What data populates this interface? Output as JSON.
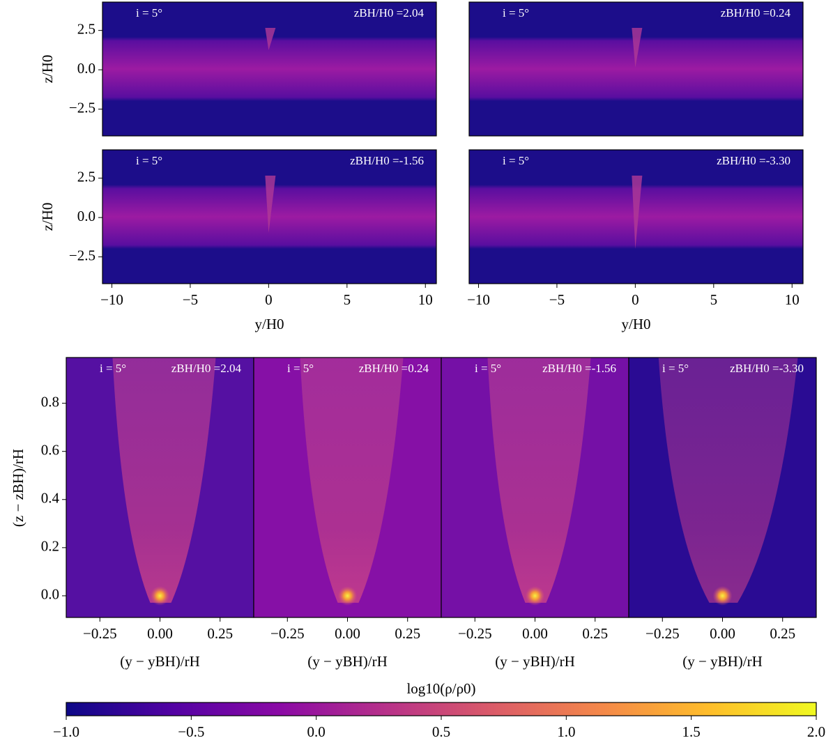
{
  "chart_data": [
    {
      "type": "image",
      "annotations": [
        "i = 5°",
        "zBH/H0 =2.04"
      ],
      "ylabel": "z/H0",
      "xlim": [
        -10.6,
        10.7
      ],
      "ylim": [
        -4.2,
        4.3
      ],
      "yticks": [
        2.5,
        {
          "value": 0,
          "label": "0.0"
        },
        {
          "value": -2.5,
          "label": "−2.5"
        }
      ]
    },
    {
      "type": "image",
      "annotations": [
        "i = 5°",
        "zBH/H0 =0.24"
      ],
      "xlim": [
        -10.6,
        10.7
      ],
      "ylim": [
        -4.2,
        4.3
      ]
    },
    {
      "type": "image",
      "annotations": [
        "i = 5°",
        "zBH/H0 =-1.56"
      ],
      "ylabel": "z/H0",
      "xlabel": "y/H0",
      "xlim": [
        -10.6,
        10.7
      ],
      "ylim": [
        -4.2,
        4.3
      ],
      "xticks": [
        {
          "value": -10,
          "label": "−10"
        },
        {
          "value": -5,
          "label": "−5"
        },
        0,
        5,
        10
      ],
      "yticks": [
        2.5,
        {
          "value": 0,
          "label": "0.0"
        },
        {
          "value": -2.5,
          "label": "−2.5"
        }
      ]
    },
    {
      "type": "image",
      "annotations": [
        "i = 5°",
        "zBH/H0 =-3.30"
      ],
      "xlabel": "y/H0",
      "xlim": [
        -10.6,
        10.7
      ],
      "ylim": [
        -4.2,
        4.3
      ],
      "xticks": [
        {
          "value": -10,
          "label": "−10"
        },
        {
          "value": -5,
          "label": "−5"
        },
        0,
        5,
        10
      ]
    },
    {
      "type": "image",
      "annotations": [
        "i = 5°",
        "zBH/H0 =2.04"
      ],
      "ylabel": "(z − zBH)/rH",
      "xlabel": "(y − yBH)/rH",
      "xlim": [
        -0.39,
        0.39
      ],
      "ylim": [
        -0.09,
        0.99
      ],
      "xticks": [
        {
          "value": -0.25,
          "label": "−0.25"
        },
        {
          "value": 0,
          "label": "0.00"
        },
        0.25
      ],
      "yticks": [
        0.8,
        0.6,
        0.4,
        0.2,
        {
          "value": 0,
          "label": "0.0"
        }
      ]
    },
    {
      "type": "image",
      "annotations": [
        "i = 5°",
        "zBH/H0 =0.24"
      ],
      "xlabel": "(y − yBH)/rH",
      "xlim": [
        -0.39,
        0.39
      ],
      "ylim": [
        -0.09,
        0.99
      ],
      "xticks": [
        {
          "value": -0.25,
          "label": "−0.25"
        },
        {
          "value": 0,
          "label": "0.00"
        },
        0.25
      ]
    },
    {
      "type": "image",
      "annotations": [
        "i = 5°",
        "zBH/H0 =-1.56"
      ],
      "xlabel": "(y − yBH)/rH",
      "xlim": [
        -0.39,
        0.39
      ],
      "ylim": [
        -0.09,
        0.99
      ],
      "xticks": [
        {
          "value": -0.25,
          "label": "−0.25"
        },
        {
          "value": 0,
          "label": "0.00"
        },
        0.25
      ]
    },
    {
      "type": "image",
      "annotations": [
        "i = 5°",
        "zBH/H0 =-3.30"
      ],
      "xlabel": "(y − yBH)/rH",
      "xlim": [
        -0.39,
        0.39
      ],
      "ylim": [
        -0.09,
        0.99
      ],
      "xticks": [
        {
          "value": -0.25,
          "label": "−0.25"
        },
        {
          "value": 0,
          "label": "0.00"
        },
        0.25
      ]
    },
    {
      "type": "colorbar",
      "label": "log10(ρ/ρ0)",
      "xlim": [
        -1,
        2
      ],
      "xticks": [
        {
          "value": -1,
          "label": "−1.0"
        },
        {
          "value": -0.5,
          "label": "−0.5"
        },
        {
          "value": 0,
          "label": "0.0"
        },
        0.5,
        {
          "value": 1,
          "label": "1.0"
        },
        1.5,
        {
          "value": 2,
          "label": "2.0"
        }
      ],
      "colors": [
        "#0d0887",
        "#5302a3",
        "#8b0aa5",
        "#b83289",
        "#db5c68",
        "#f48849",
        "#febd2a",
        "#f0f921"
      ]
    }
  ]
}
